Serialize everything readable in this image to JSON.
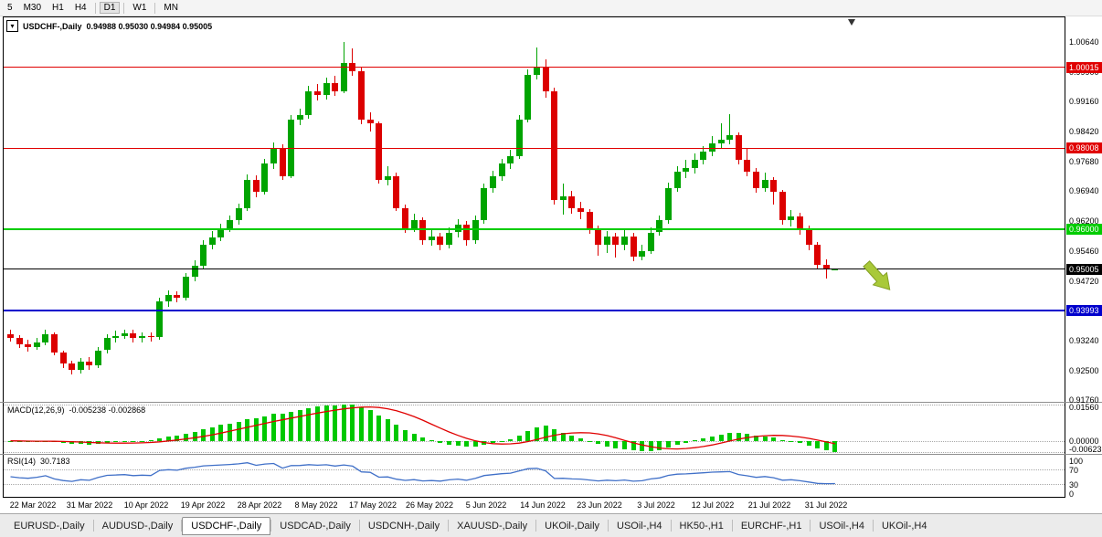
{
  "toolbar": {
    "periods": [
      {
        "label": "5",
        "active": false,
        "divider_after": false
      },
      {
        "label": "M30",
        "active": false,
        "divider_after": false
      },
      {
        "label": "H1",
        "active": false,
        "divider_after": false
      },
      {
        "label": "H4",
        "active": false,
        "divider_after": true
      },
      {
        "label": "D1",
        "active": true,
        "divider_after": true
      },
      {
        "label": "W1",
        "active": false,
        "divider_after": true
      },
      {
        "label": "MN",
        "active": false,
        "divider_after": false
      }
    ]
  },
  "chart_header": {
    "symbol": "USDCHF-,Daily",
    "ohlc": "0.94988 0.95030 0.94984 0.95005"
  },
  "price_axis": {
    "ticks": [
      1.0064,
      0.999,
      0.9916,
      0.9842,
      0.9768,
      0.9694,
      0.962,
      0.9546,
      0.9472,
      0.9398,
      0.9324,
      0.925,
      0.9176
    ]
  },
  "hlines": [
    {
      "price": 1.00015,
      "color": "#e00000",
      "thickness": 1,
      "label": "1.00015"
    },
    {
      "price": 0.98008,
      "color": "#e00000",
      "thickness": 1,
      "label": "0.98008"
    },
    {
      "price": 0.96,
      "color": "#00cc00",
      "thickness": 2,
      "label": "0.96000"
    },
    {
      "price": 0.95005,
      "color": "#000000",
      "thickness": 1,
      "label": "0.95005"
    },
    {
      "price": 0.93993,
      "color": "#0000cc",
      "thickness": 2,
      "label": "0.93993"
    }
  ],
  "arrow": {
    "color": "#a9c939",
    "border": "#84a024"
  },
  "chart_data": {
    "type": "candlestick",
    "title": "USDCHF Daily",
    "y_range": [
      0.9172,
      1.0125
    ],
    "up_color": "#00a400",
    "down_color": "#dc0000",
    "x_labels": [
      "22 Mar 2022",
      "31 Mar 2022",
      "10 Apr 2022",
      "19 Apr 2022",
      "28 Apr 2022",
      "8 May 2022",
      "17 May 2022",
      "26 May 2022",
      "5 Jun 2022",
      "14 Jun 2022",
      "23 Jun 2022",
      "3 Jul 2022",
      "12 Jul 2022",
      "21 Jul 2022",
      "31 Jul 2022"
    ],
    "ohlc_format": [
      "open",
      "high",
      "low",
      "close"
    ],
    "candles": [
      [
        0.934,
        0.9352,
        0.9322,
        0.933
      ],
      [
        0.933,
        0.9338,
        0.9305,
        0.9315
      ],
      [
        0.9315,
        0.9326,
        0.9296,
        0.9308
      ],
      [
        0.9308,
        0.9331,
        0.93,
        0.932
      ],
      [
        0.932,
        0.9351,
        0.9312,
        0.934
      ],
      [
        0.934,
        0.9345,
        0.9288,
        0.9295
      ],
      [
        0.9295,
        0.93,
        0.9255,
        0.9268
      ],
      [
        0.9268,
        0.9275,
        0.924,
        0.9252
      ],
      [
        0.9252,
        0.928,
        0.9242,
        0.9272
      ],
      [
        0.9272,
        0.9282,
        0.9252,
        0.9262
      ],
      [
        0.9262,
        0.9308,
        0.9255,
        0.93
      ],
      [
        0.93,
        0.934,
        0.9292,
        0.933
      ],
      [
        0.933,
        0.9348,
        0.932,
        0.9336
      ],
      [
        0.9336,
        0.9352,
        0.9328,
        0.9342
      ],
      [
        0.9342,
        0.935,
        0.9318,
        0.933
      ],
      [
        0.933,
        0.9344,
        0.932,
        0.9336
      ],
      [
        0.9336,
        0.9345,
        0.9322,
        0.9332
      ],
      [
        0.9332,
        0.943,
        0.9326,
        0.942
      ],
      [
        0.942,
        0.9448,
        0.9408,
        0.9436
      ],
      [
        0.9436,
        0.9446,
        0.9418,
        0.943
      ],
      [
        0.943,
        0.9492,
        0.9424,
        0.9482
      ],
      [
        0.9482,
        0.9522,
        0.947,
        0.951
      ],
      [
        0.951,
        0.9572,
        0.9502,
        0.9562
      ],
      [
        0.9562,
        0.9596,
        0.955,
        0.958
      ],
      [
        0.958,
        0.9614,
        0.957,
        0.9602
      ],
      [
        0.9602,
        0.9634,
        0.9592,
        0.9622
      ],
      [
        0.9622,
        0.9664,
        0.9612,
        0.9652
      ],
      [
        0.9652,
        0.9736,
        0.9644,
        0.9722
      ],
      [
        0.9722,
        0.9734,
        0.968,
        0.9692
      ],
      [
        0.9692,
        0.9775,
        0.9685,
        0.9762
      ],
      [
        0.9762,
        0.9816,
        0.975,
        0.9802
      ],
      [
        0.9802,
        0.981,
        0.9722,
        0.9732
      ],
      [
        0.9732,
        0.9884,
        0.9726,
        0.9872
      ],
      [
        0.9872,
        0.9898,
        0.9858,
        0.9882
      ],
      [
        0.9882,
        0.9956,
        0.9874,
        0.9942
      ],
      [
        0.9942,
        0.996,
        0.9918,
        0.9932
      ],
      [
        0.9932,
        0.9976,
        0.9922,
        0.9962
      ],
      [
        0.9962,
        0.998,
        0.993,
        0.9942
      ],
      [
        0.9942,
        1.0064,
        0.9936,
        1.0012
      ],
      [
        1.0012,
        1.0048,
        0.998,
        0.9992
      ],
      [
        0.9992,
        1.0,
        0.986,
        0.9872
      ],
      [
        0.9872,
        0.989,
        0.9842,
        0.9862
      ],
      [
        0.9862,
        0.9868,
        0.9712,
        0.9722
      ],
      [
        0.9722,
        0.9756,
        0.9708,
        0.9732
      ],
      [
        0.9732,
        0.974,
        0.9644,
        0.9652
      ],
      [
        0.9652,
        0.966,
        0.959,
        0.9602
      ],
      [
        0.9602,
        0.9638,
        0.9592,
        0.9622
      ],
      [
        0.9622,
        0.963,
        0.9562,
        0.9572
      ],
      [
        0.9572,
        0.9598,
        0.956,
        0.9582
      ],
      [
        0.9582,
        0.959,
        0.9548,
        0.9562
      ],
      [
        0.9562,
        0.9604,
        0.9552,
        0.9592
      ],
      [
        0.9592,
        0.9624,
        0.958,
        0.9612
      ],
      [
        0.9612,
        0.962,
        0.956,
        0.9572
      ],
      [
        0.9572,
        0.9634,
        0.9564,
        0.9622
      ],
      [
        0.9622,
        0.9714,
        0.9614,
        0.9702
      ],
      [
        0.9702,
        0.9744,
        0.969,
        0.9732
      ],
      [
        0.9732,
        0.9774,
        0.972,
        0.9762
      ],
      [
        0.9762,
        0.9796,
        0.975,
        0.9782
      ],
      [
        0.9782,
        0.9884,
        0.9774,
        0.9872
      ],
      [
        0.9872,
        0.9995,
        0.9864,
        0.9982
      ],
      [
        0.9982,
        1.005,
        0.997,
        1.0002
      ],
      [
        1.0002,
        1.002,
        0.9926,
        0.9942
      ],
      [
        0.9942,
        0.995,
        0.966,
        0.9672
      ],
      [
        0.9672,
        0.9712,
        0.9636,
        0.9682
      ],
      [
        0.9682,
        0.9696,
        0.9638,
        0.9652
      ],
      [
        0.9652,
        0.9668,
        0.9624,
        0.9642
      ],
      [
        0.9642,
        0.965,
        0.9588,
        0.9602
      ],
      [
        0.9602,
        0.961,
        0.9535,
        0.9562
      ],
      [
        0.9562,
        0.9596,
        0.954,
        0.9582
      ],
      [
        0.9582,
        0.9592,
        0.953,
        0.9562
      ],
      [
        0.9562,
        0.96,
        0.9548,
        0.9582
      ],
      [
        0.9582,
        0.959,
        0.952,
        0.9532
      ],
      [
        0.9532,
        0.9562,
        0.9522,
        0.9545
      ],
      [
        0.9545,
        0.9604,
        0.9538,
        0.9592
      ],
      [
        0.9592,
        0.9634,
        0.9584,
        0.9622
      ],
      [
        0.9622,
        0.9716,
        0.9614,
        0.9702
      ],
      [
        0.9702,
        0.9756,
        0.9692,
        0.9742
      ],
      [
        0.9742,
        0.9772,
        0.9726,
        0.9752
      ],
      [
        0.9752,
        0.9788,
        0.9738,
        0.9772
      ],
      [
        0.9772,
        0.9806,
        0.976,
        0.9792
      ],
      [
        0.9792,
        0.983,
        0.978,
        0.9812
      ],
      [
        0.9812,
        0.9862,
        0.98,
        0.9822
      ],
      [
        0.9822,
        0.9885,
        0.981,
        0.9832
      ],
      [
        0.9832,
        0.984,
        0.976,
        0.9772
      ],
      [
        0.9772,
        0.98,
        0.973,
        0.9742
      ],
      [
        0.9742,
        0.9752,
        0.969,
        0.9702
      ],
      [
        0.9702,
        0.974,
        0.9692,
        0.9722
      ],
      [
        0.9722,
        0.973,
        0.9662,
        0.9692
      ],
      [
        0.9692,
        0.9698,
        0.961,
        0.9622
      ],
      [
        0.9622,
        0.9648,
        0.9606,
        0.9632
      ],
      [
        0.9632,
        0.964,
        0.9586,
        0.9602
      ],
      [
        0.9602,
        0.961,
        0.9548,
        0.9562
      ],
      [
        0.9562,
        0.9568,
        0.95,
        0.9512
      ],
      [
        0.9512,
        0.9526,
        0.9478,
        0.9499
      ],
      [
        0.94988,
        0.9503,
        0.94984,
        0.95005
      ]
    ]
  },
  "macd_panel": {
    "label": "MACD(12,26,9)",
    "values": "-0.005238 -0.002868",
    "bar_color": "#00c800",
    "signal_color": "#e00000",
    "axis_ticks": [
      {
        "value": 0.0156,
        "label": "0.01560"
      },
      {
        "value": 0,
        "label": "0.00000"
      },
      {
        "value": -0.00623,
        "label": "-0.00623"
      }
    ]
  },
  "rsi_panel": {
    "label": "RSI(14)",
    "value": "30.7183",
    "line_color": "#4070c8",
    "levels": [
      70,
      30
    ],
    "axis_ticks": [
      {
        "value": 100,
        "label": "100"
      },
      {
        "value": 70,
        "label": "70"
      },
      {
        "value": 30,
        "label": "30"
      },
      {
        "value": 0,
        "label": "0"
      }
    ]
  },
  "tabs": [
    {
      "label": "EURUSD-,Daily",
      "active": false
    },
    {
      "label": "AUDUSD-,Daily",
      "active": false
    },
    {
      "label": "USDCHF-,Daily",
      "active": true
    },
    {
      "label": "USDCAD-,Daily",
      "active": false
    },
    {
      "label": "USDCNH-,Daily",
      "active": false
    },
    {
      "label": "XAUUSD-,Daily",
      "active": false
    },
    {
      "label": "UKOil-,Daily",
      "active": false
    },
    {
      "label": "USOil-,H4",
      "active": false
    },
    {
      "label": "HK50-,H1",
      "active": false
    },
    {
      "label": "EURCHF-,H1",
      "active": false
    },
    {
      "label": "USOil-,H4",
      "active": false
    },
    {
      "label": "UKOil-,H4",
      "active": false
    }
  ]
}
